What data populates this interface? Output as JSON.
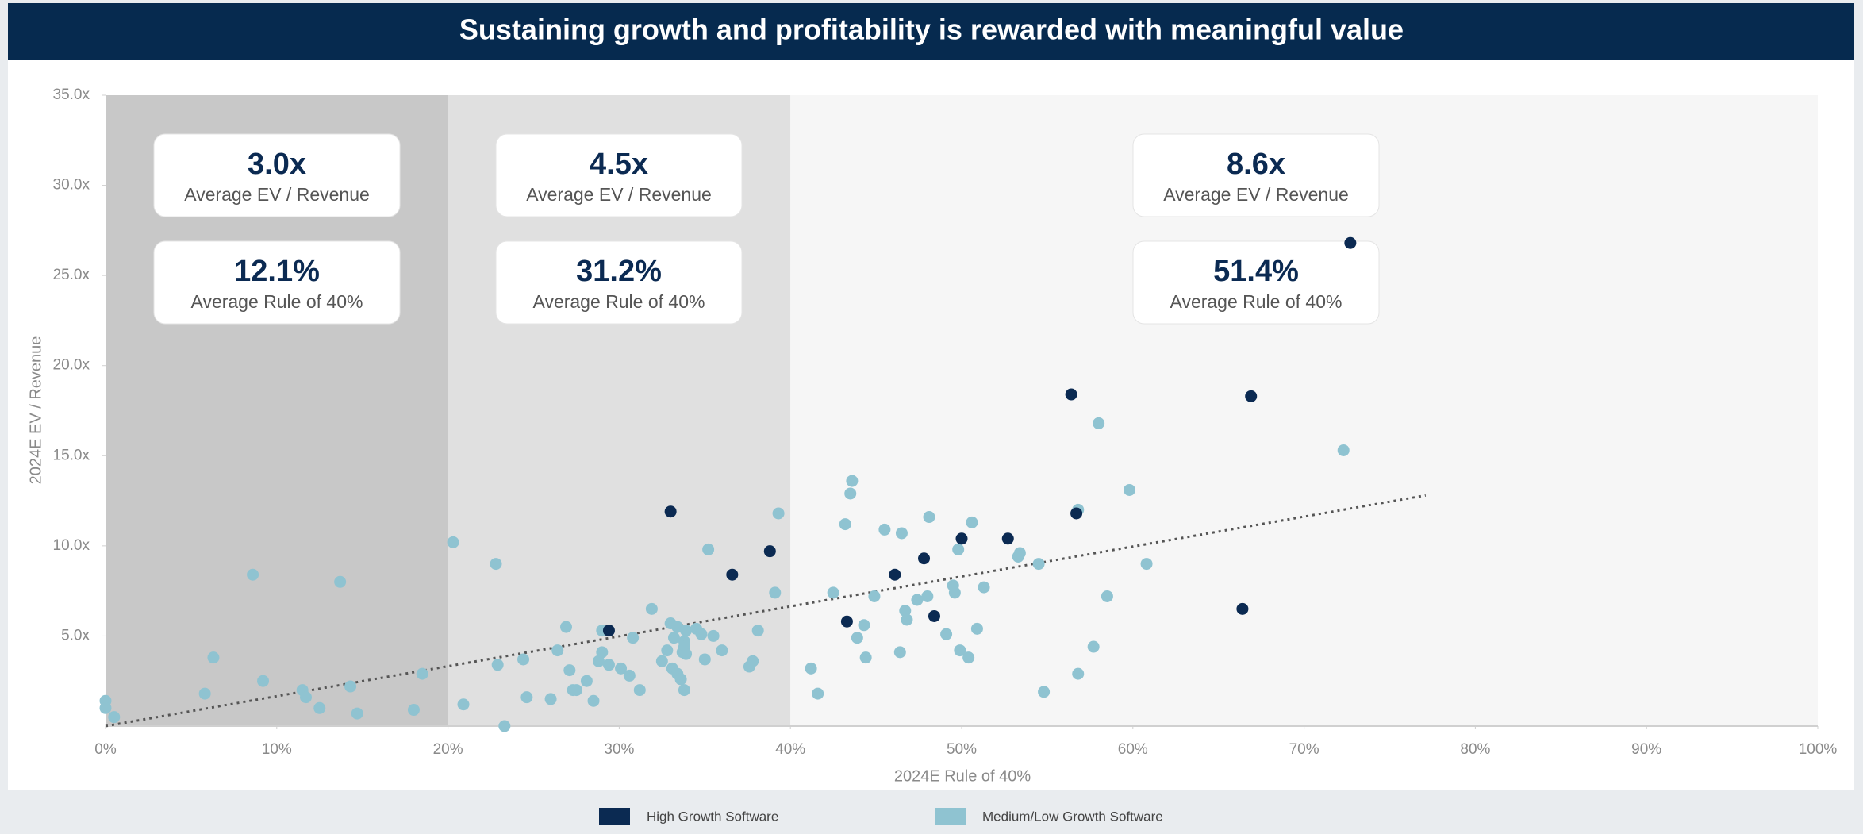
{
  "chart_data": {
    "type": "scatter",
    "title": "Sustaining growth and profitability is rewarded with meaningful value",
    "x_label": "2024E Rule of 40%",
    "y_label": "2024E EV / Revenue",
    "xlim": [
      0,
      100
    ],
    "ylim": [
      0,
      35
    ],
    "xticks": [
      {
        "value": 0,
        "label": "0%"
      },
      {
        "value": 10,
        "label": "10%"
      },
      {
        "value": 20,
        "label": "20%"
      },
      {
        "value": 30,
        "label": "30%"
      },
      {
        "value": 40,
        "label": "40%"
      },
      {
        "value": 50,
        "label": "50%"
      },
      {
        "value": 60,
        "label": "60%"
      },
      {
        "value": 70,
        "label": "70%"
      },
      {
        "value": 80,
        "label": "80%"
      },
      {
        "value": 90,
        "label": "90%"
      },
      {
        "value": 100,
        "label": "100%"
      }
    ],
    "yticks": [
      {
        "value": 5,
        "label": "5.0x"
      },
      {
        "value": 10,
        "label": "10.0x"
      },
      {
        "value": 15,
        "label": "15.0x"
      },
      {
        "value": 20,
        "label": "20.0x"
      },
      {
        "value": 25,
        "label": "25.0x"
      },
      {
        "value": 30,
        "label": "30.0x"
      },
      {
        "value": 35,
        "label": "35.0x"
      }
    ],
    "bands": [
      {
        "xlim": [
          0,
          20
        ],
        "color": "#c8c8c8"
      },
      {
        "xlim": [
          20,
          40
        ],
        "color": "#e0e0e0"
      },
      {
        "xlim": [
          40,
          100
        ],
        "color": "#f6f6f6"
      }
    ],
    "annotations": [
      {
        "ev": "3.0x",
        "ev_label": "Average EV / Revenue",
        "rule": "12.1%",
        "rule_label": "Average Rule of 40%"
      },
      {
        "ev": "4.5x",
        "ev_label": "Average EV / Revenue",
        "rule": "31.2%",
        "rule_label": "Average Rule of 40%"
      },
      {
        "ev": "8.6x",
        "ev_label": "Average EV / Revenue",
        "rule": "51.4%",
        "rule_label": "Average Rule of 40%"
      }
    ],
    "trendline": {
      "x": [
        0,
        77.1
      ],
      "values": [
        0,
        12.8
      ],
      "color": "#555555"
    },
    "series": [
      {
        "name": "High Growth Software",
        "color": "#0b2a52",
        "x": [
          29.4,
          33.0,
          36.6,
          38.8,
          43.3,
          46.1,
          47.8,
          48.4,
          50.0,
          52.7,
          56.4,
          56.7,
          66.4,
          66.9,
          72.7
        ],
        "values": [
          5.3,
          11.9,
          8.4,
          9.7,
          5.8,
          8.4,
          9.3,
          6.1,
          10.4,
          10.4,
          18.4,
          11.8,
          6.5,
          18.3,
          26.8
        ]
      },
      {
        "name": "Medium/Low Growth Software",
        "color": "#8fc3d1",
        "x": [
          0,
          0,
          0.5,
          5.8,
          6.3,
          8.6,
          9.2,
          11.5,
          11.7,
          12.5,
          13.7,
          14.3,
          14.7,
          18.0,
          18.5,
          20.3,
          20.9,
          22.8,
          22.9,
          23.3,
          24.4,
          24.6,
          26.0,
          26.4,
          26.9,
          27.1,
          27.3,
          27.5,
          28.1,
          28.5,
          28.8,
          29.0,
          29.0,
          29.4,
          30.1,
          30.6,
          30.8,
          31.2,
          31.9,
          32.5,
          32.8,
          33.0,
          33.1,
          33.2,
          33.4,
          33.4,
          33.6,
          33.7,
          33.8,
          33.8,
          33.8,
          33.9,
          33.9,
          34.5,
          34.8,
          35.0,
          35.2,
          35.5,
          36.0,
          37.6,
          37.8,
          38.1,
          39.1,
          39.3,
          41.2,
          41.6,
          42.5,
          43.2,
          43.5,
          43.6,
          43.9,
          44.3,
          44.4,
          44.9,
          45.5,
          46.4,
          46.5,
          46.7,
          46.8,
          47.4,
          48.0,
          48.1,
          49.1,
          49.5,
          49.6,
          49.8,
          49.9,
          50.4,
          50.6,
          50.9,
          51.3,
          53.3,
          53.4,
          54.5,
          54.8,
          56.8,
          56.8,
          57.7,
          58.0,
          58.5,
          59.8,
          60.8,
          72.3
        ],
        "values": [
          1.4,
          1.0,
          0.5,
          1.8,
          3.8,
          8.4,
          2.5,
          2.0,
          1.6,
          1.0,
          8.0,
          2.2,
          0.7,
          0.9,
          2.9,
          10.2,
          1.2,
          9.0,
          3.4,
          0.0,
          3.7,
          1.6,
          1.5,
          4.2,
          5.5,
          3.1,
          2.0,
          2.0,
          2.5,
          1.4,
          3.6,
          4.1,
          5.3,
          3.4,
          3.2,
          2.8,
          4.9,
          2.0,
          6.5,
          3.6,
          4.2,
          5.7,
          3.2,
          4.9,
          5.5,
          2.9,
          2.6,
          4.1,
          4.7,
          4.4,
          2.0,
          4.0,
          5.3,
          5.4,
          5.1,
          3.7,
          9.8,
          5.0,
          4.2,
          3.3,
          3.6,
          5.3,
          7.4,
          11.8,
          3.2,
          1.8,
          7.4,
          11.2,
          12.9,
          13.6,
          4.9,
          5.6,
          3.8,
          7.2,
          10.9,
          4.1,
          10.7,
          6.4,
          5.9,
          7.0,
          7.2,
          11.6,
          5.1,
          7.8,
          7.4,
          9.8,
          4.2,
          3.8,
          11.3,
          5.4,
          7.7,
          9.4,
          9.6,
          9.0,
          1.9,
          12.0,
          2.9,
          4.4,
          16.8,
          7.2,
          13.1,
          9.0,
          15.3
        ]
      }
    ]
  }
}
